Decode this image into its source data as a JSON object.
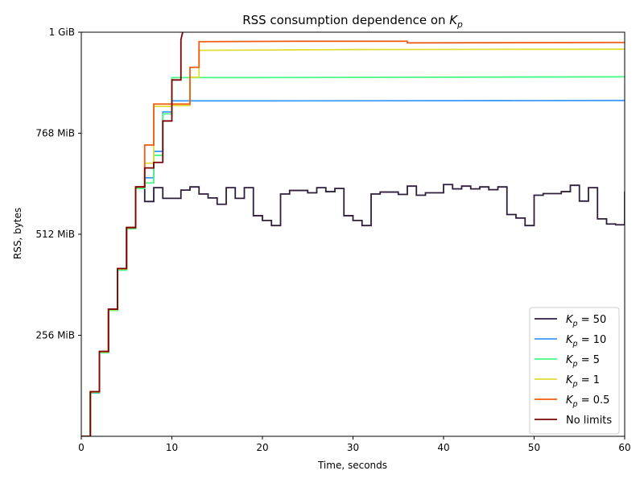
{
  "chart_data": {
    "type": "line",
    "title_prefix": "RSS consumption dependence on ",
    "title_var": "K",
    "title_sub": "p",
    "xlabel": "Time, seconds",
    "ylabel": "RSS, bytes",
    "xlim": [
      0,
      60
    ],
    "ylim": [
      0,
      1024
    ],
    "y_unit": "MiB",
    "xticks": [
      0,
      10,
      20,
      30,
      40,
      50,
      60
    ],
    "yticks": [
      {
        "value": 256,
        "label": "256 MiB"
      },
      {
        "value": 512,
        "label": "512 MiB"
      },
      {
        "value": 768,
        "label": "768 MiB"
      },
      {
        "value": 1024,
        "label": "1 GiB"
      }
    ],
    "legend_position": "lower-right",
    "series": [
      {
        "name": "50",
        "label_var": "K",
        "label_sub": "p",
        "label_op": " = ",
        "color": "#2e1e3b",
        "points": [
          [
            0,
            0
          ],
          [
            1,
            0
          ],
          [
            1,
            113
          ],
          [
            2,
            113
          ],
          [
            2,
            215
          ],
          [
            3,
            215
          ],
          [
            3,
            322
          ],
          [
            4,
            322
          ],
          [
            4,
            425
          ],
          [
            5,
            425
          ],
          [
            5,
            529
          ],
          [
            6,
            529
          ],
          [
            6,
            632
          ],
          [
            7,
            632
          ],
          [
            7,
            595
          ],
          [
            8,
            595
          ],
          [
            8,
            630
          ],
          [
            9,
            630
          ],
          [
            9,
            603
          ],
          [
            11,
            603
          ],
          [
            11,
            624
          ],
          [
            12,
            624
          ],
          [
            12,
            632
          ],
          [
            13,
            632
          ],
          [
            13,
            614
          ],
          [
            14,
            614
          ],
          [
            14,
            604
          ],
          [
            15,
            604
          ],
          [
            15,
            588
          ],
          [
            16,
            588
          ],
          [
            16,
            630
          ],
          [
            17,
            630
          ],
          [
            17,
            603
          ],
          [
            18,
            603
          ],
          [
            18,
            630
          ],
          [
            19,
            630
          ],
          [
            19,
            559
          ],
          [
            20,
            559
          ],
          [
            20,
            547
          ],
          [
            21,
            547
          ],
          [
            21,
            534
          ],
          [
            22,
            534
          ],
          [
            22,
            614
          ],
          [
            23,
            614
          ],
          [
            23,
            623
          ],
          [
            25,
            623
          ],
          [
            25,
            617
          ],
          [
            26,
            617
          ],
          [
            26,
            630
          ],
          [
            27,
            630
          ],
          [
            27,
            620
          ],
          [
            28,
            620
          ],
          [
            28,
            628
          ],
          [
            29,
            628
          ],
          [
            29,
            559
          ],
          [
            30,
            559
          ],
          [
            30,
            547
          ],
          [
            31,
            547
          ],
          [
            31,
            534
          ],
          [
            32,
            534
          ],
          [
            32,
            614
          ],
          [
            33,
            614
          ],
          [
            33,
            619
          ],
          [
            35,
            619
          ],
          [
            35,
            613
          ],
          [
            36,
            613
          ],
          [
            36,
            634
          ],
          [
            37,
            634
          ],
          [
            37,
            611
          ],
          [
            38,
            611
          ],
          [
            38,
            617
          ],
          [
            40,
            617
          ],
          [
            40,
            638
          ],
          [
            41,
            638
          ],
          [
            41,
            627
          ],
          [
            42,
            627
          ],
          [
            42,
            634
          ],
          [
            43,
            634
          ],
          [
            43,
            627
          ],
          [
            44,
            627
          ],
          [
            44,
            632
          ],
          [
            45,
            632
          ],
          [
            45,
            625
          ],
          [
            46,
            625
          ],
          [
            46,
            632
          ],
          [
            47,
            632
          ],
          [
            47,
            562
          ],
          [
            48,
            562
          ],
          [
            48,
            553
          ],
          [
            49,
            553
          ],
          [
            49,
            534
          ],
          [
            50,
            534
          ],
          [
            50,
            611
          ],
          [
            51,
            611
          ],
          [
            51,
            615
          ],
          [
            53,
            615
          ],
          [
            53,
            620
          ],
          [
            54,
            620
          ],
          [
            54,
            636
          ],
          [
            55,
            636
          ],
          [
            55,
            596
          ],
          [
            56,
            596
          ],
          [
            56,
            630
          ],
          [
            57,
            630
          ],
          [
            57,
            551
          ],
          [
            58,
            551
          ],
          [
            58,
            538
          ],
          [
            59,
            538
          ],
          [
            59,
            536
          ],
          [
            60,
            536
          ],
          [
            60,
            620
          ]
        ]
      },
      {
        "name": "10",
        "label_var": "K",
        "label_sub": "p",
        "label_op": " = ",
        "color": "#3e9bfe",
        "points": [
          [
            0,
            0
          ],
          [
            1,
            0
          ],
          [
            1,
            110
          ],
          [
            2,
            110
          ],
          [
            2,
            213
          ],
          [
            3,
            213
          ],
          [
            3,
            320
          ],
          [
            4,
            320
          ],
          [
            4,
            423
          ],
          [
            5,
            423
          ],
          [
            5,
            527
          ],
          [
            6,
            527
          ],
          [
            6,
            630
          ],
          [
            7,
            630
          ],
          [
            7,
            655
          ],
          [
            8,
            655
          ],
          [
            8,
            722
          ],
          [
            9,
            722
          ],
          [
            9,
            822
          ],
          [
            10,
            822
          ],
          [
            10,
            850
          ],
          [
            20,
            850
          ],
          [
            60,
            851
          ]
        ]
      },
      {
        "name": "5",
        "label_var": "K",
        "label_sub": "p",
        "label_op": " = ",
        "color": "#46f884",
        "points": [
          [
            0,
            0
          ],
          [
            1,
            0
          ],
          [
            1,
            111
          ],
          [
            2,
            111
          ],
          [
            2,
            212
          ],
          [
            3,
            212
          ],
          [
            3,
            319
          ],
          [
            4,
            319
          ],
          [
            4,
            421
          ],
          [
            5,
            421
          ],
          [
            5,
            526
          ],
          [
            6,
            526
          ],
          [
            6,
            628
          ],
          [
            7,
            628
          ],
          [
            7,
            642
          ],
          [
            8,
            642
          ],
          [
            8,
            712
          ],
          [
            9,
            712
          ],
          [
            9,
            817
          ],
          [
            10,
            817
          ],
          [
            10,
            909
          ],
          [
            20,
            909
          ],
          [
            60,
            911
          ]
        ]
      },
      {
        "name": "1",
        "label_var": "K",
        "label_sub": "p",
        "label_op": " = ",
        "color": "#e1dd37",
        "points": [
          [
            0,
            0
          ],
          [
            1,
            0
          ],
          [
            1,
            112
          ],
          [
            2,
            112
          ],
          [
            2,
            214
          ],
          [
            3,
            214
          ],
          [
            3,
            321
          ],
          [
            4,
            321
          ],
          [
            4,
            424
          ],
          [
            5,
            424
          ],
          [
            5,
            528
          ],
          [
            6,
            528
          ],
          [
            6,
            631
          ],
          [
            7,
            631
          ],
          [
            7,
            692
          ],
          [
            8,
            692
          ],
          [
            8,
            836
          ],
          [
            10,
            836
          ],
          [
            10,
            838
          ],
          [
            12,
            838
          ],
          [
            12,
            910
          ],
          [
            13,
            910
          ],
          [
            13,
            978
          ],
          [
            30,
            980
          ],
          [
            60,
            981
          ]
        ]
      },
      {
        "name": "0.5",
        "label_var": "K",
        "label_sub": "p",
        "label_op": " = ",
        "color": "#f05b12",
        "points": [
          [
            0,
            0
          ],
          [
            1,
            0
          ],
          [
            1,
            113
          ],
          [
            2,
            113
          ],
          [
            2,
            215
          ],
          [
            3,
            215
          ],
          [
            3,
            322
          ],
          [
            4,
            322
          ],
          [
            4,
            425
          ],
          [
            5,
            425
          ],
          [
            5,
            529
          ],
          [
            6,
            529
          ],
          [
            6,
            632
          ],
          [
            7,
            632
          ],
          [
            7,
            738
          ],
          [
            8,
            738
          ],
          [
            8,
            842
          ],
          [
            12,
            842
          ],
          [
            12,
            935
          ],
          [
            13,
            935
          ],
          [
            13,
            1000
          ],
          [
            24,
            1001
          ],
          [
            36,
            1001
          ],
          [
            36,
            997
          ],
          [
            60,
            998
          ]
        ]
      },
      {
        "name": "No limits",
        "color": "#7a0403",
        "points": [
          [
            0,
            0
          ],
          [
            1,
            0
          ],
          [
            1,
            113
          ],
          [
            2,
            113
          ],
          [
            2,
            215
          ],
          [
            3,
            215
          ],
          [
            3,
            322
          ],
          [
            4,
            322
          ],
          [
            4,
            425
          ],
          [
            5,
            425
          ],
          [
            5,
            529
          ],
          [
            6,
            529
          ],
          [
            6,
            632
          ],
          [
            7,
            632
          ],
          [
            7,
            680
          ],
          [
            8,
            680
          ],
          [
            8,
            694
          ],
          [
            9,
            694
          ],
          [
            9,
            799
          ],
          [
            10,
            799
          ],
          [
            10,
            903
          ],
          [
            11,
            903
          ],
          [
            11,
            1005
          ],
          [
            11.1,
            1015
          ],
          [
            11.2,
            1024
          ]
        ]
      }
    ]
  }
}
